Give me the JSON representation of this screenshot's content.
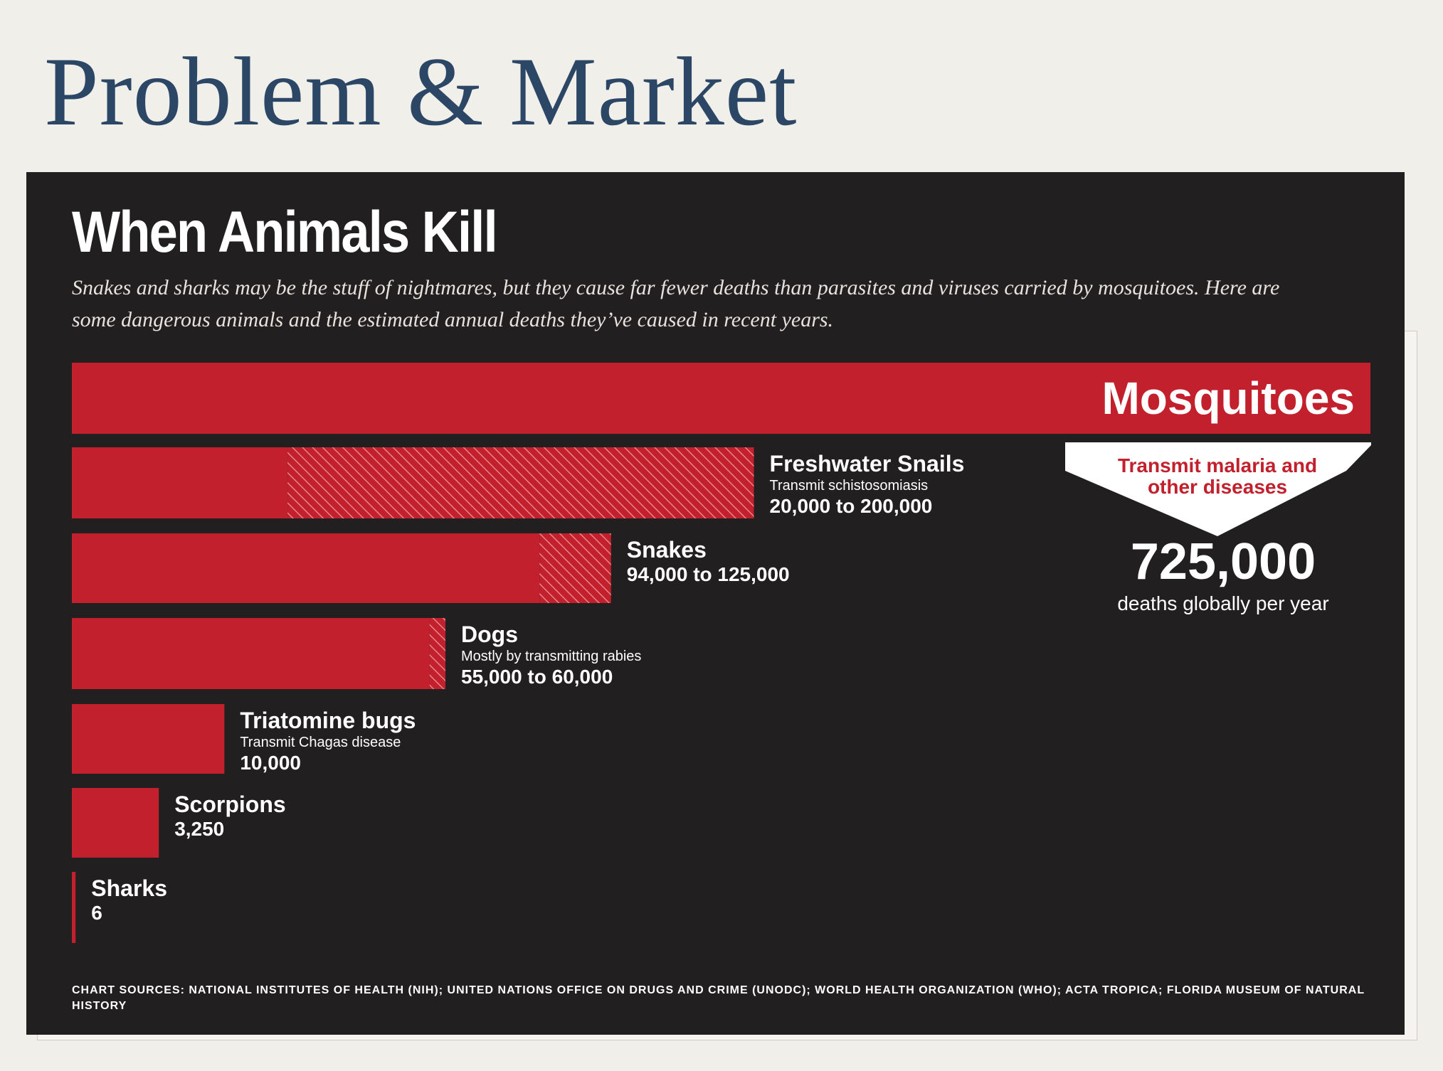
{
  "slide": {
    "title": "Problem & Market"
  },
  "infographic": {
    "title": "When Animals Kill",
    "subtitle": "Snakes and sharks may be the stuff of nightmares, but they cause far fewer deaths than parasites and viruses carried by mosquitoes. Here are some dangerous animals and the estimated annual deaths they’ve caused in recent years.",
    "sources": "CHART SOURCES: NATIONAL INSTITUTES OF HEALTH (NIH); UNITED NATIONS OFFICE ON DRUGS AND CRIME (UNODC); WORLD HEALTH ORGANIZATION (WHO); ACTA TROPICA; FLORIDA MUSEUM OF NATURAL HISTORY"
  },
  "chart_data": {
    "type": "bar",
    "orientation": "horizontal",
    "title": "When Animals Kill",
    "xlim": [
      0,
      725000
    ],
    "grid": false,
    "legend": "none",
    "colors": {
      "bar": "#c1202c",
      "hatch": "#e8838a",
      "background": "#221f20",
      "text": "#ffffff"
    },
    "categories": [
      "Mosquitoes",
      "Freshwater Snails",
      "Snakes",
      "Dogs",
      "Triatomine bugs",
      "Scorpions",
      "Sharks"
    ],
    "values_low": [
      725000,
      20000,
      94000,
      55000,
      10000,
      3250,
      6
    ],
    "values_high": [
      725000,
      200000,
      125000,
      60000,
      10000,
      3250,
      6
    ],
    "value_labels": [
      "725,000",
      "20,000 to 200,000",
      "94,000 to 125,000",
      "55,000 to 60,000",
      "10,000",
      "3,250",
      "6"
    ],
    "notes": [
      "Transmit malaria and other diseases",
      "Transmit schistosomiasis",
      "",
      "Mostly by transmitting rabies",
      "Transmit Chagas disease",
      "",
      ""
    ],
    "mosquito_callout": {
      "note": "Transmit malaria and other diseases",
      "value": "725,000",
      "caption": "deaths globally per year"
    }
  }
}
